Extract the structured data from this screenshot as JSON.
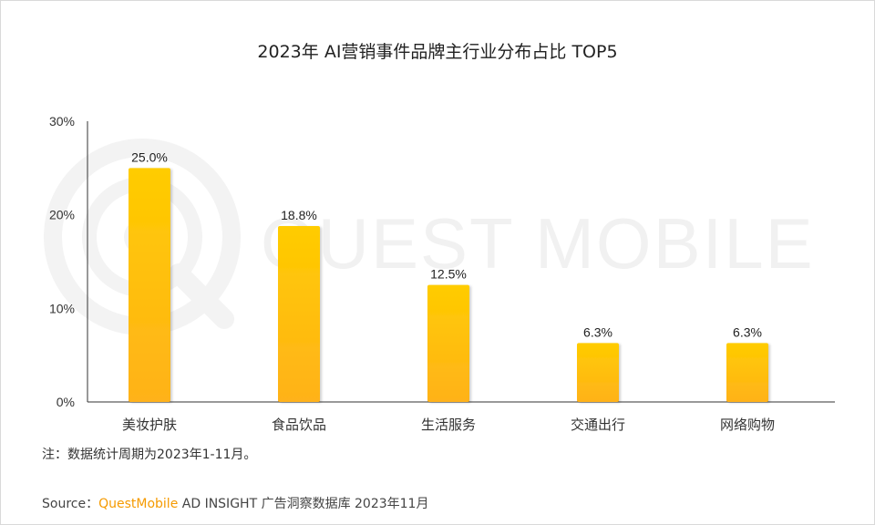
{
  "chart_data": {
    "type": "bar",
    "title": "2023年 AI营销事件品牌主行业分布占比 TOP5",
    "categories": [
      "美妆护肤",
      "食品饮品",
      "生活服务",
      "交通出行",
      "网络购物"
    ],
    "values": [
      25.0,
      18.8,
      12.5,
      6.3,
      6.3
    ],
    "value_labels": [
      "25.0%",
      "18.8%",
      "12.5%",
      "6.3%",
      "6.3%"
    ],
    "ylim": [
      0,
      30
    ],
    "yticks": [
      0,
      10,
      20,
      30
    ],
    "ytick_labels": [
      "0%",
      "10%",
      "20%",
      "30%"
    ],
    "xlabel": "",
    "ylabel": "",
    "grid": false,
    "bar_color_top": "#ffcc00",
    "bar_color_bottom": "#ffb21a"
  },
  "watermark": {
    "text": "QUEST MOBILE"
  },
  "note": "注：数据统计周期为2023年1-11月。",
  "source": {
    "prefix": "Source：",
    "brand": "QuestMobile",
    "rest": " AD INSIGHT 广告洞察数据库 2023年11月"
  },
  "colors": {
    "brand": "#f59a00",
    "axis": "#333333"
  }
}
